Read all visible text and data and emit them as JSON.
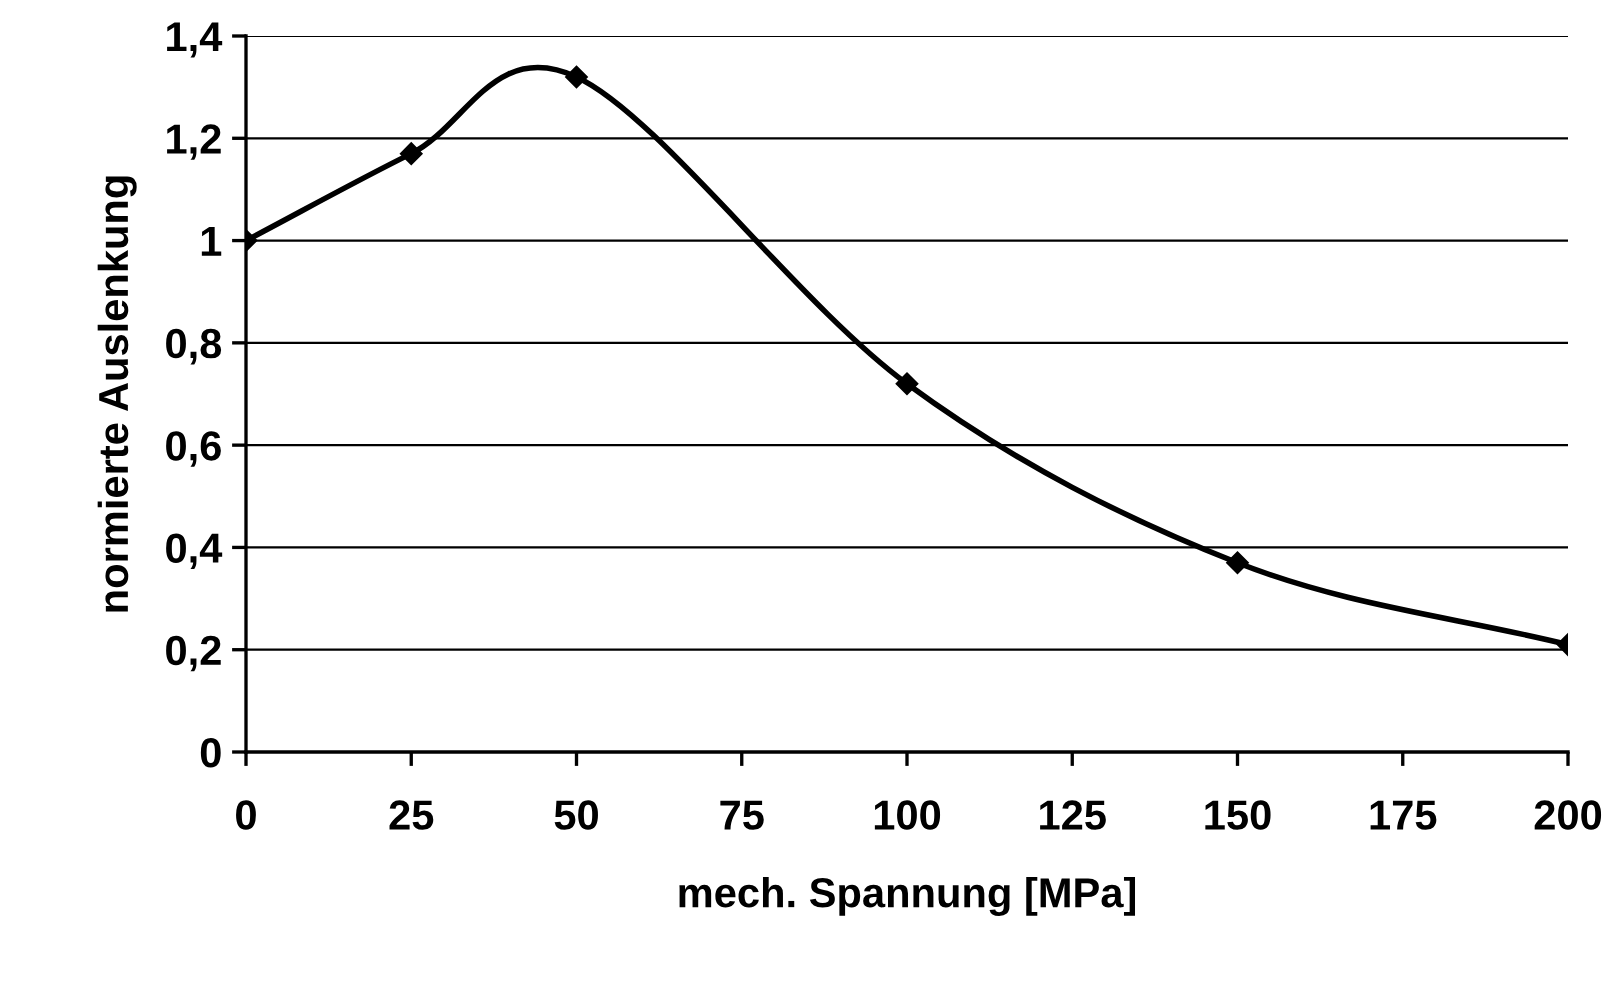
{
  "chart_data": {
    "type": "line",
    "xlabel": "mech. Spannung [MPa]",
    "ylabel": "normierte Auslenkung",
    "x": [
      0,
      25,
      50,
      100,
      150,
      200
    ],
    "series": [
      {
        "color": "#000000",
        "values": [
          1.0,
          1.17,
          1.32,
          0.72,
          0.37,
          0.21
        ]
      }
    ],
    "xlim": [
      0,
      200
    ],
    "xticks": [
      0,
      25,
      50,
      75,
      100,
      125,
      150,
      175,
      200
    ],
    "ylim": [
      0,
      1.4
    ],
    "yticks": [
      0,
      {
        "value": 0.2,
        "label": "0,2"
      },
      {
        "value": 0.4,
        "label": "0,4"
      },
      {
        "value": 0.6,
        "label": "0,6"
      },
      {
        "value": 0.8,
        "label": "0,8"
      },
      1,
      {
        "value": 1.2,
        "label": "1,2"
      },
      {
        "value": 1.4,
        "label": "1,4"
      }
    ],
    "grid": "y",
    "marker": "diamond",
    "line_style": "solid"
  }
}
